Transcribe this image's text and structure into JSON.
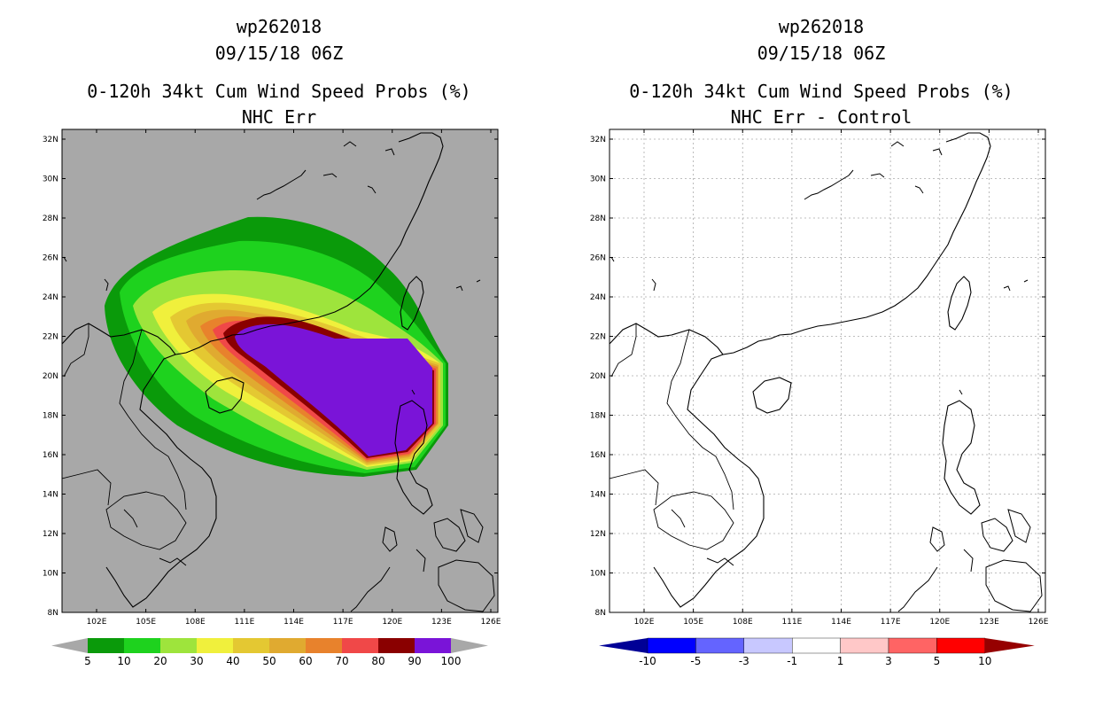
{
  "left": {
    "storm_id": "wp262018",
    "datetime": "09/15/18 06Z",
    "product": "0-120h 34kt Cum Wind Speed Probs (%)",
    "subtitle": "NHC Err",
    "colorbar_labels": [
      "5",
      "10",
      "20",
      "30",
      "40",
      "50",
      "60",
      "70",
      "80",
      "90",
      "100"
    ],
    "colors": {
      "background": "#a8a8a8",
      "p5": "#0a9a0a",
      "p10": "#1ed21e",
      "p20": "#9ee43c",
      "p30": "#f0f03c",
      "p40": "#e4c832",
      "p50": "#e0aa30",
      "p60": "#e8822c",
      "p70": "#f04848",
      "p80": "#8a0000",
      "p90": "#7a14d8",
      "under": "#a8a8a8",
      "over": "#a8a8a8"
    }
  },
  "right": {
    "storm_id": "wp262018",
    "datetime": "09/15/18 06Z",
    "product": "0-120h 34kt Cum Wind Speed Probs (%)",
    "subtitle": "NHC Err - Control",
    "colorbar_labels": [
      "-10",
      "-5",
      "-3",
      "-1",
      "1",
      "3",
      "5",
      "10"
    ],
    "colors": {
      "c1": "#000096",
      "c2": "#0000ff",
      "c3": "#6464ff",
      "c4": "#c8c8ff",
      "c5": "#ffffff",
      "c6": "#ffc8c8",
      "c7": "#ff6464",
      "c8": "#ff0000",
      "c9": "#960000"
    }
  },
  "axes": {
    "lat_labels": [
      "32N",
      "30N",
      "28N",
      "26N",
      "24N",
      "22N",
      "20N",
      "18N",
      "16N",
      "14N",
      "12N",
      "10N",
      "8N"
    ],
    "lon_labels": [
      "102E",
      "105E",
      "108E",
      "111E",
      "114E",
      "117E",
      "120E",
      "123E",
      "126E"
    ]
  }
}
